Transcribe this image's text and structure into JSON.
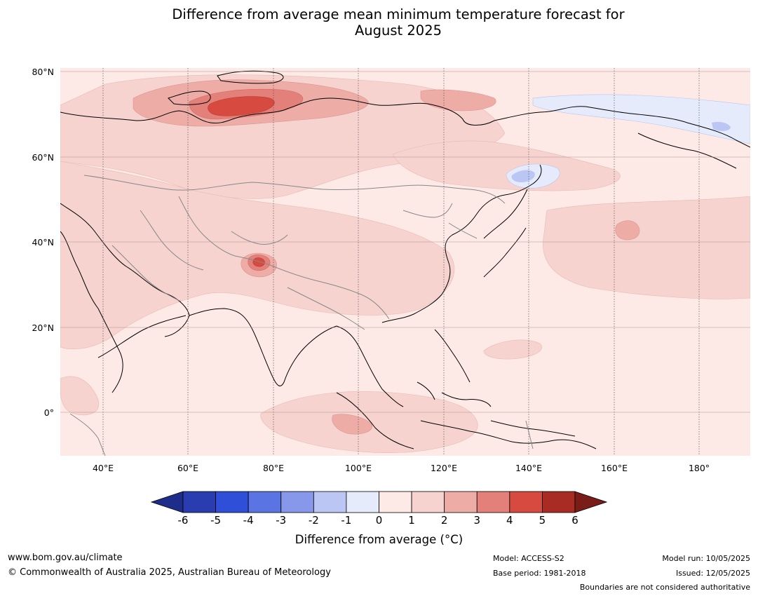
{
  "title_line1": "Difference from average mean minimum temperature forecast for",
  "title_line2": "August 2025",
  "map": {
    "lat_labels": [
      "80°N",
      "60°N",
      "40°N",
      "20°N",
      "0°"
    ],
    "lon_labels": [
      "40°E",
      "60°E",
      "80°E",
      "100°E",
      "120°E",
      "140°E",
      "160°E",
      "180°"
    ]
  },
  "legend": {
    "ticks": [
      "-6",
      "-5",
      "-4",
      "-3",
      "-2",
      "-1",
      "0",
      "1",
      "2",
      "3",
      "4",
      "5",
      "6"
    ],
    "colors": [
      "#1f2d8a",
      "#2a3db0",
      "#2f4fd8",
      "#5a74e3",
      "#8797ea",
      "#bcc6f4",
      "#e6ebfb",
      "#fdeae7",
      "#f6d3cf",
      "#edaca6",
      "#e4807a",
      "#d64a40",
      "#a82b24",
      "#7a1c17"
    ],
    "label": "Difference from average (°C)"
  },
  "footer": {
    "website": "www.bom.gov.au/climate",
    "copyright": "© Commonwealth of Australia 2025, Australian Bureau of Meteorology",
    "model": "Model: ACCESS-S2",
    "base_period": "Base period: 1981-2018",
    "model_run": "Model run: 10/05/2025",
    "issued": "Issued: 12/05/2025",
    "boundaries": "Boundaries are not considered authoritative"
  }
}
